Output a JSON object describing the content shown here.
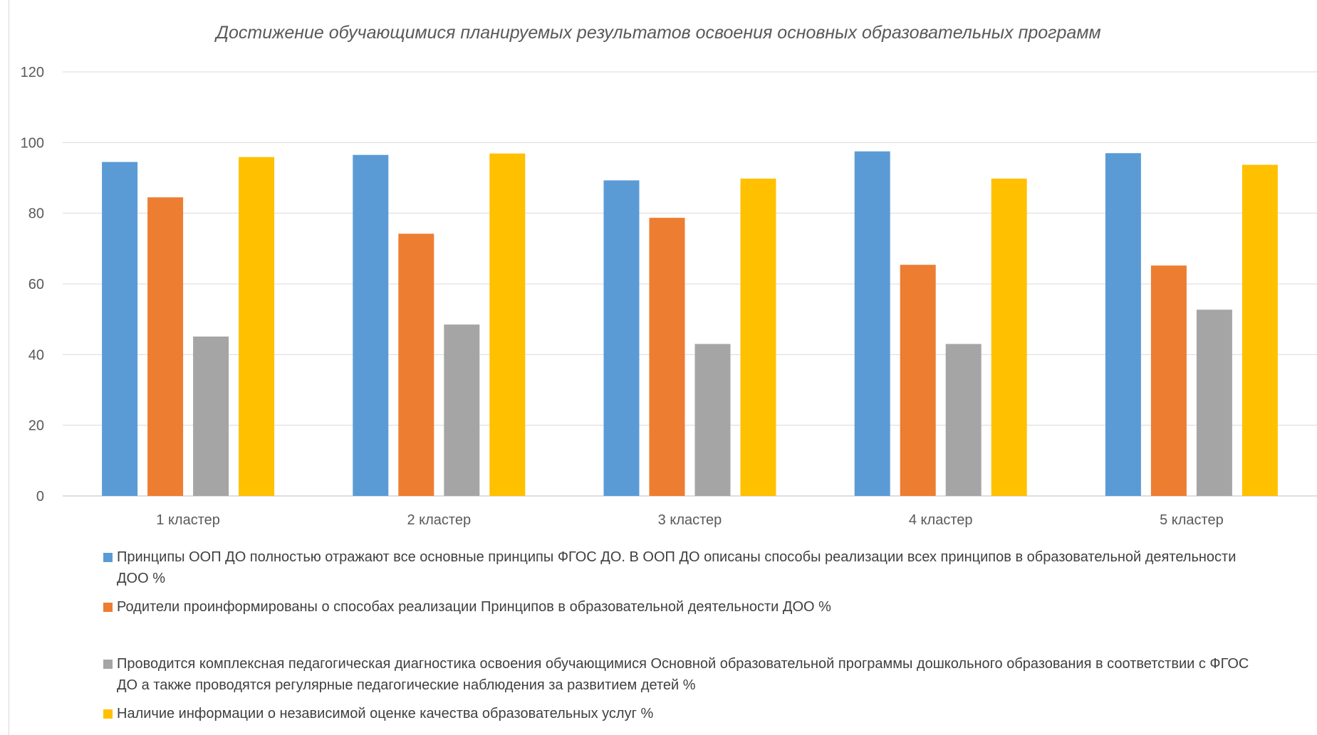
{
  "chart_data": {
    "type": "bar",
    "title": "Достижение обучающимися планируемых результатов освоения основных образовательных программ",
    "categories": [
      "1 кластер",
      "2 кластер",
      "3 кластер",
      "4 кластер",
      "5 кластер"
    ],
    "ylim": [
      0,
      120
    ],
    "yticks": [
      0,
      20,
      40,
      60,
      80,
      100,
      120
    ],
    "grid": true,
    "legend_position": "bottom",
    "series": [
      {
        "name": "Принципы ООП ДО полностью отражают все основные принципы ФГОС ДО.  В ООП ДО описаны способы реализации всех принципов в образовательной деятельности ДОО %",
        "color": "#5b9bd5",
        "values": [
          94.5,
          96.5,
          89.3,
          97.5,
          97.0
        ]
      },
      {
        "name": "Родители проинформированы о способах реализации Принципов в образовательной деятельности ДОО %",
        "color": "#ed7d31",
        "values": [
          84.5,
          74.2,
          78.7,
          65.4,
          65.2
        ]
      },
      {
        "name": "Проводится комплексная педагогическая диагностика освоения обучающимися Основной образовательной программы дошкольного образования в соответствии с ФГОС ДО а также проводятся регулярные педагогические наблюдения за развитием детей %",
        "color": "#a5a5a5",
        "values": [
          45.1,
          48.5,
          43.0,
          43.0,
          52.7
        ]
      },
      {
        "name": "Наличие информации о независимой оценке качества образовательных услуг %",
        "color": "#ffc000",
        "values": [
          95.9,
          96.9,
          89.8,
          89.8,
          93.7
        ]
      }
    ]
  }
}
